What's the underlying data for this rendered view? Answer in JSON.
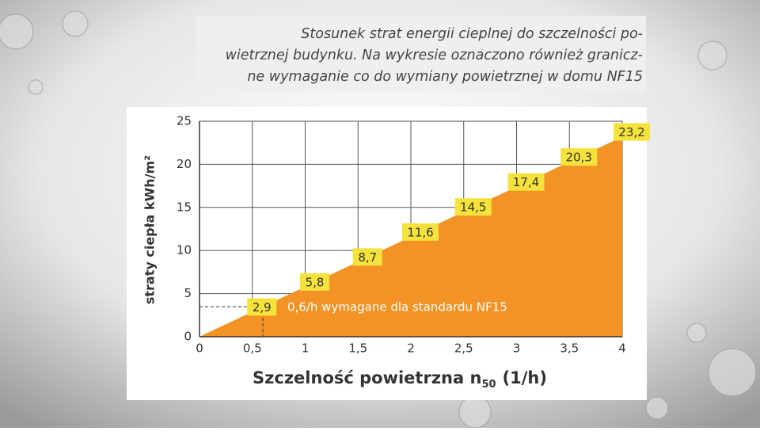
{
  "caption": {
    "lines": [
      "Stosunek strat energii cieplnej do szczelności po-",
      "wietrznej budynku. Na wykresie oznaczono również granicz-",
      "ne wymaganie co do wymiany powietrznej w domu NF15"
    ]
  },
  "chart_data": {
    "type": "area",
    "x": [
      0,
      0.5,
      1,
      1.5,
      2,
      2.5,
      3,
      3.5,
      4
    ],
    "values": [
      0,
      2.9,
      5.8,
      8.7,
      11.6,
      14.5,
      17.4,
      20.3,
      23.2
    ],
    "value_labels": [
      null,
      "2,9",
      "5,8",
      "8,7",
      "11,6",
      "14,5",
      "17,4",
      "20,3",
      "23,2"
    ],
    "color": "#f39325",
    "label_color": "#f5e23b",
    "xlim": [
      0,
      4
    ],
    "ylim": [
      0,
      25
    ],
    "xticks": [
      0,
      {
        "value": 0.5,
        "label": "0,5"
      },
      1,
      {
        "value": 1.5,
        "label": "1,5"
      },
      2,
      {
        "value": 2.5,
        "label": "2,5"
      },
      3,
      {
        "value": 3.5,
        "label": "3,5"
      },
      4
    ],
    "yticks": [
      0,
      5,
      10,
      15,
      20,
      25
    ],
    "grid": true,
    "y_label": "straty ciepła kWh/m²",
    "x_label": {
      "text": "Szczelność powietrzna n",
      "subscript": "50",
      "suffix": "(1/h)"
    },
    "annotation": {
      "text": "0,6/h wymagane dla standardu NF15",
      "x": 0.6,
      "y": 3.48
    }
  }
}
